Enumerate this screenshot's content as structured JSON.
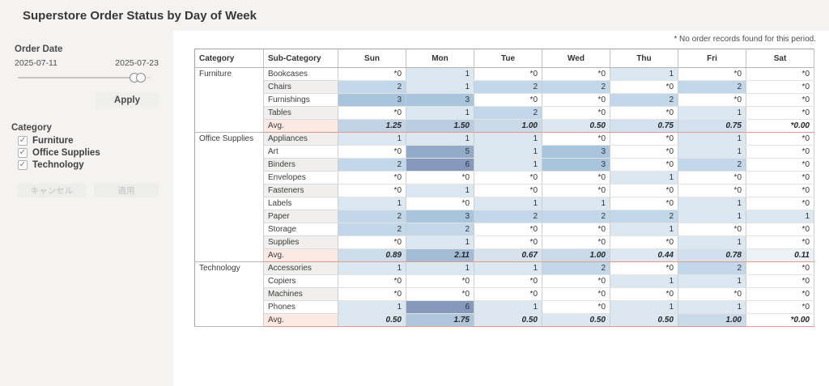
{
  "title": "Superstore Order Status by Day of Week",
  "footnote": "* No order records found for this period.",
  "colors": {
    "page_bg": "#f4f3f2",
    "panel_bg": "#ffffff",
    "band_bg": "#f0efed",
    "avg_label_bg": "#fbeae2",
    "avg_border": "#e6988a",
    "heat_ramp": {
      "0": "#ffffff",
      "1": "#dbe8f2",
      "2": "#c2d7e9",
      "3": "#a9c5dd",
      "4": "#9db8d3",
      "5": "#92abc9",
      "6": "#8699bd"
    },
    "avg_ramp": {
      "start": "#eef4f9",
      "end": "#a0bad5",
      "max": 2.2
    }
  },
  "filters": {
    "order_date": {
      "label": "Order Date",
      "start": "2025-07-11",
      "end": "2025-07-23",
      "apply_label": "Apply"
    },
    "category": {
      "label": "Category",
      "options": [
        {
          "label": "Furniture",
          "checked": true
        },
        {
          "label": "Office Supplies",
          "checked": true
        },
        {
          "label": "Technology",
          "checked": true
        }
      ],
      "cancel_label": "キャンセル",
      "apply_label": "適用"
    }
  },
  "table": {
    "columns": [
      "Category",
      "Sub-Category",
      "Sun",
      "Mon",
      "Tue",
      "Wed",
      "Thu",
      "Fri",
      "Sat"
    ],
    "avg_label": "Avg.",
    "groups": [
      {
        "category": "Furniture",
        "rows": [
          {
            "label": "Bookcases",
            "values": [
              "*0",
              "1",
              "*0",
              "*0",
              "1",
              "*0",
              "*0"
            ]
          },
          {
            "label": "Chairs",
            "values": [
              "2",
              "1",
              "2",
              "2",
              "*0",
              "2",
              "*0"
            ]
          },
          {
            "label": "Furnishings",
            "values": [
              "3",
              "3",
              "*0",
              "*0",
              "2",
              "*0",
              "*0"
            ]
          },
          {
            "label": "Tables",
            "values": [
              "*0",
              "1",
              "2",
              "*0",
              "*0",
              "1",
              "*0"
            ]
          }
        ],
        "avg": [
          "1.25",
          "1.50",
          "1.00",
          "0.50",
          "0.75",
          "0.75",
          "*0.00"
        ]
      },
      {
        "category": "Office Supplies",
        "rows": [
          {
            "label": "Appliances",
            "values": [
              "1",
              "1",
              "1",
              "*0",
              "*0",
              "1",
              "*0"
            ]
          },
          {
            "label": "Art",
            "values": [
              "*0",
              "5",
              "1",
              "3",
              "*0",
              "1",
              "*0"
            ]
          },
          {
            "label": "Binders",
            "values": [
              "2",
              "6",
              "1",
              "3",
              "*0",
              "2",
              "*0"
            ]
          },
          {
            "label": "Envelopes",
            "values": [
              "*0",
              "*0",
              "*0",
              "*0",
              "1",
              "*0",
              "*0"
            ]
          },
          {
            "label": "Fasteners",
            "values": [
              "*0",
              "1",
              "*0",
              "*0",
              "*0",
              "*0",
              "*0"
            ]
          },
          {
            "label": "Labels",
            "values": [
              "1",
              "*0",
              "1",
              "1",
              "*0",
              "1",
              "*0"
            ]
          },
          {
            "label": "Paper",
            "values": [
              "2",
              "3",
              "2",
              "2",
              "2",
              "1",
              "1"
            ]
          },
          {
            "label": "Storage",
            "values": [
              "2",
              "2",
              "*0",
              "*0",
              "1",
              "*0",
              "*0"
            ]
          },
          {
            "label": "Supplies",
            "values": [
              "*0",
              "1",
              "*0",
              "*0",
              "*0",
              "1",
              "*0"
            ]
          }
        ],
        "avg": [
          "0.89",
          "2.11",
          "0.67",
          "1.00",
          "0.44",
          "0.78",
          "0.11"
        ]
      },
      {
        "category": "Technology",
        "rows": [
          {
            "label": "Accessories",
            "values": [
              "1",
              "1",
              "1",
              "2",
              "*0",
              "2",
              "*0"
            ]
          },
          {
            "label": "Copiers",
            "values": [
              "*0",
              "*0",
              "*0",
              "*0",
              "1",
              "1",
              "*0"
            ]
          },
          {
            "label": "Machines",
            "values": [
              "*0",
              "*0",
              "*0",
              "*0",
              "*0",
              "*0",
              "*0"
            ]
          },
          {
            "label": "Phones",
            "values": [
              "1",
              "6",
              "1",
              "*0",
              "1",
              "1",
              "*0"
            ]
          }
        ],
        "avg": [
          "0.50",
          "1.75",
          "0.50",
          "0.50",
          "0.50",
          "1.00",
          "*0.00"
        ]
      }
    ]
  }
}
